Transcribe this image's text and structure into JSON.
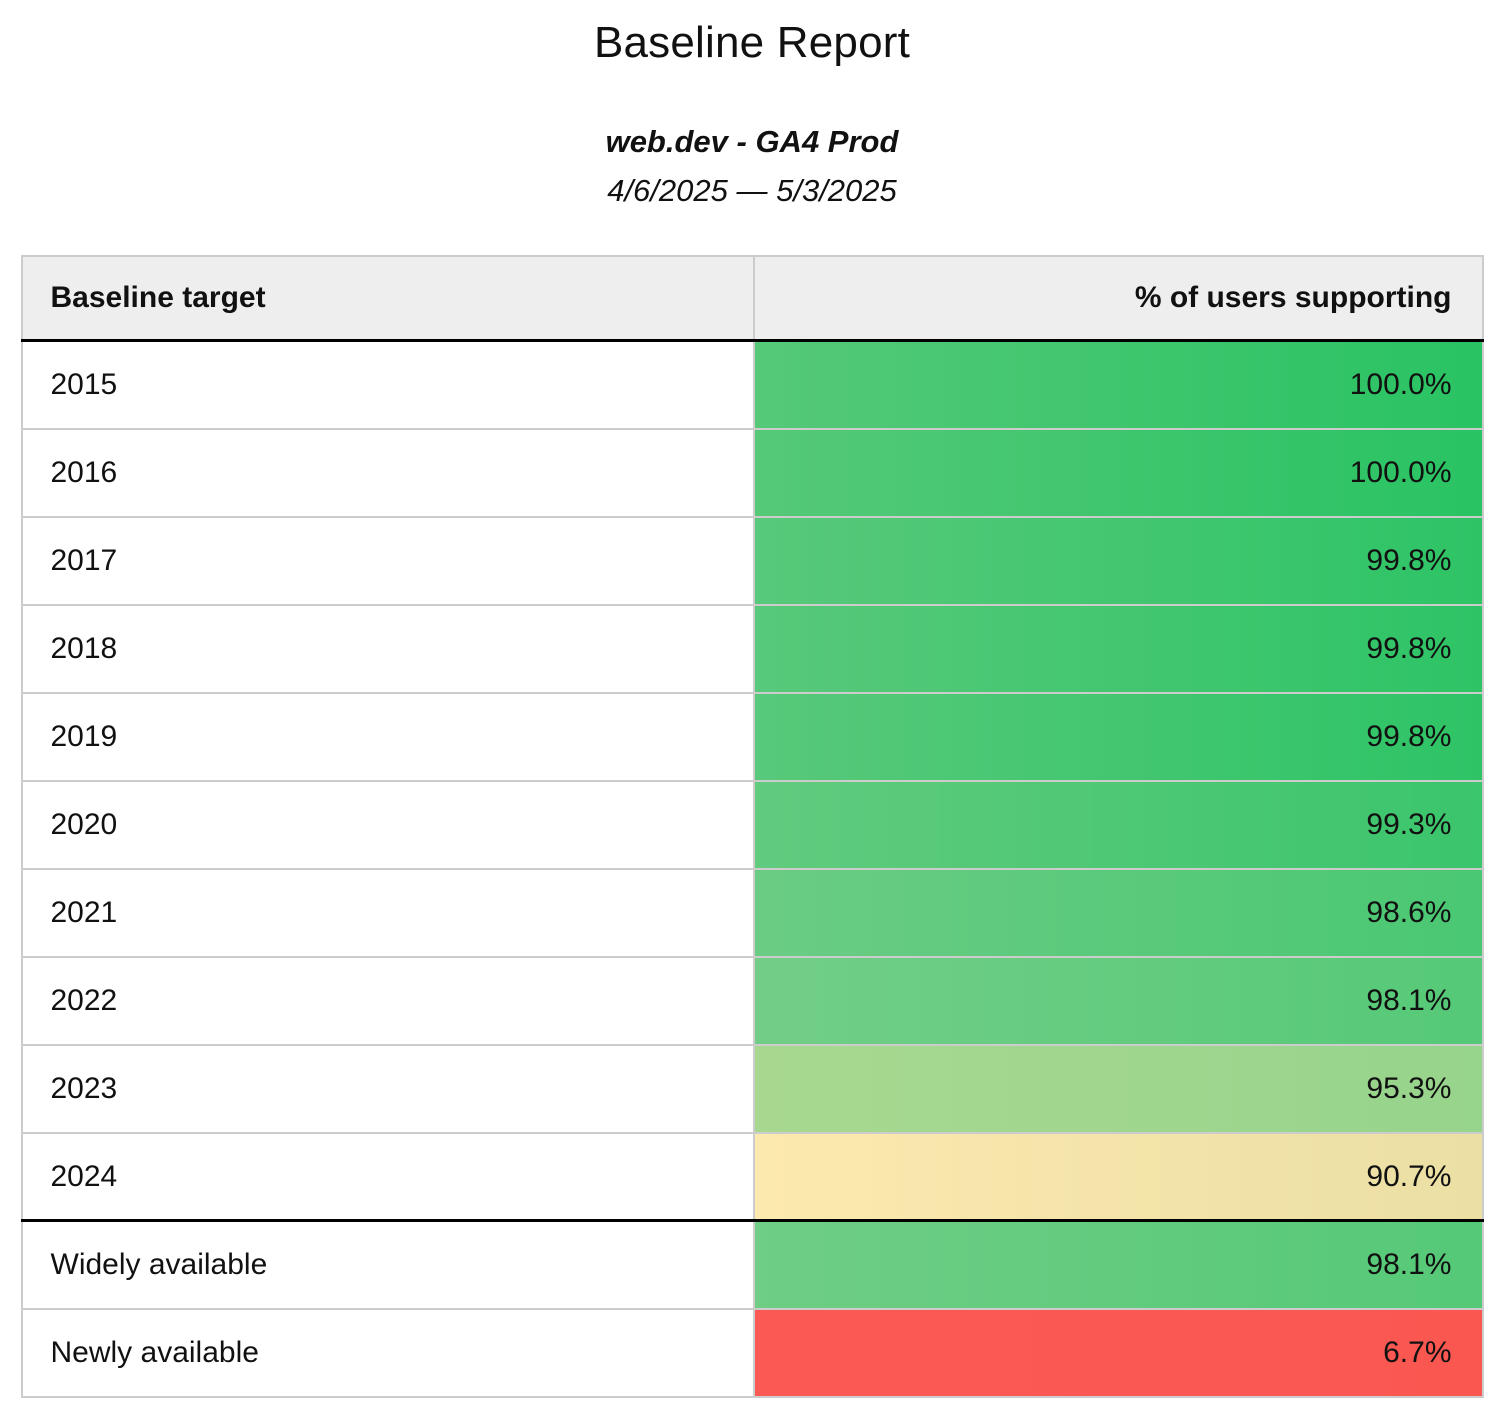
{
  "report": {
    "title": "Baseline Report",
    "subtitle": "web.dev - GA4 Prod",
    "date_range": "4/6/2025 — 5/3/2025"
  },
  "table": {
    "columns": [
      {
        "label": "Baseline target"
      },
      {
        "label": "% of users supporting"
      }
    ],
    "rows": [
      {
        "label": "2015",
        "value": "100.0%",
        "percent": 100.0,
        "color_from": "#55c978",
        "color_to": "#29c363",
        "section_start": false
      },
      {
        "label": "2016",
        "value": "100.0%",
        "percent": 100.0,
        "color_from": "#55c978",
        "color_to": "#29c363",
        "section_start": false
      },
      {
        "label": "2017",
        "value": "99.8%",
        "percent": 99.8,
        "color_from": "#58c97a",
        "color_to": "#2ec466",
        "section_start": false
      },
      {
        "label": "2018",
        "value": "99.8%",
        "percent": 99.8,
        "color_from": "#58c97a",
        "color_to": "#2ec466",
        "section_start": false
      },
      {
        "label": "2019",
        "value": "99.8%",
        "percent": 99.8,
        "color_from": "#58c97a",
        "color_to": "#2ec466",
        "section_start": false
      },
      {
        "label": "2020",
        "value": "99.3%",
        "percent": 99.3,
        "color_from": "#61cb7e",
        "color_to": "#3bc56c",
        "section_start": false
      },
      {
        "label": "2021",
        "value": "98.6%",
        "percent": 98.6,
        "color_from": "#6acc83",
        "color_to": "#4ac873",
        "section_start": false
      },
      {
        "label": "2022",
        "value": "98.1%",
        "percent": 98.1,
        "color_from": "#72ce87",
        "color_to": "#55c977",
        "section_start": false
      },
      {
        "label": "2023",
        "value": "95.3%",
        "percent": 95.3,
        "color_from": "#a8d890",
        "color_to": "#97d48c",
        "section_start": false
      },
      {
        "label": "2024",
        "value": "90.7%",
        "percent": 90.7,
        "color_from": "#fce9ae",
        "color_to": "#ebdfa4",
        "section_start": false
      },
      {
        "label": "Widely available",
        "value": "98.1%",
        "percent": 98.1,
        "color_from": "#6fcd85",
        "color_to": "#55c977",
        "section_start": true
      },
      {
        "label": "Newly available",
        "value": "6.7%",
        "percent": 6.7,
        "color_from": "#fb5a54",
        "color_to": "#fa5751",
        "section_start": false
      }
    ],
    "colors": {
      "header_background": "#eeeeee",
      "grid_border": "#cccccc",
      "section_border": "#000000",
      "high_support_green": "#2ac363",
      "mid_support_yellow": "#f5e5a8",
      "low_support_red": "#fb5954"
    }
  },
  "chart_data": {
    "type": "table",
    "title": "Baseline Report",
    "subtitle": "web.dev - GA4 Prod",
    "date_range": "4/6/2025 — 5/3/2025",
    "columns": [
      "Baseline target",
      "% of users supporting"
    ],
    "categories": [
      "2015",
      "2016",
      "2017",
      "2018",
      "2019",
      "2020",
      "2021",
      "2022",
      "2023",
      "2024",
      "Widely available",
      "Newly available"
    ],
    "values": [
      100.0,
      100.0,
      99.8,
      99.8,
      99.8,
      99.3,
      98.6,
      98.1,
      95.3,
      90.7,
      98.1,
      6.7
    ],
    "value_format": "percent_1dp",
    "color_scale": "green=high, yellow=mid, red=low, applied as cell background heatmap"
  }
}
